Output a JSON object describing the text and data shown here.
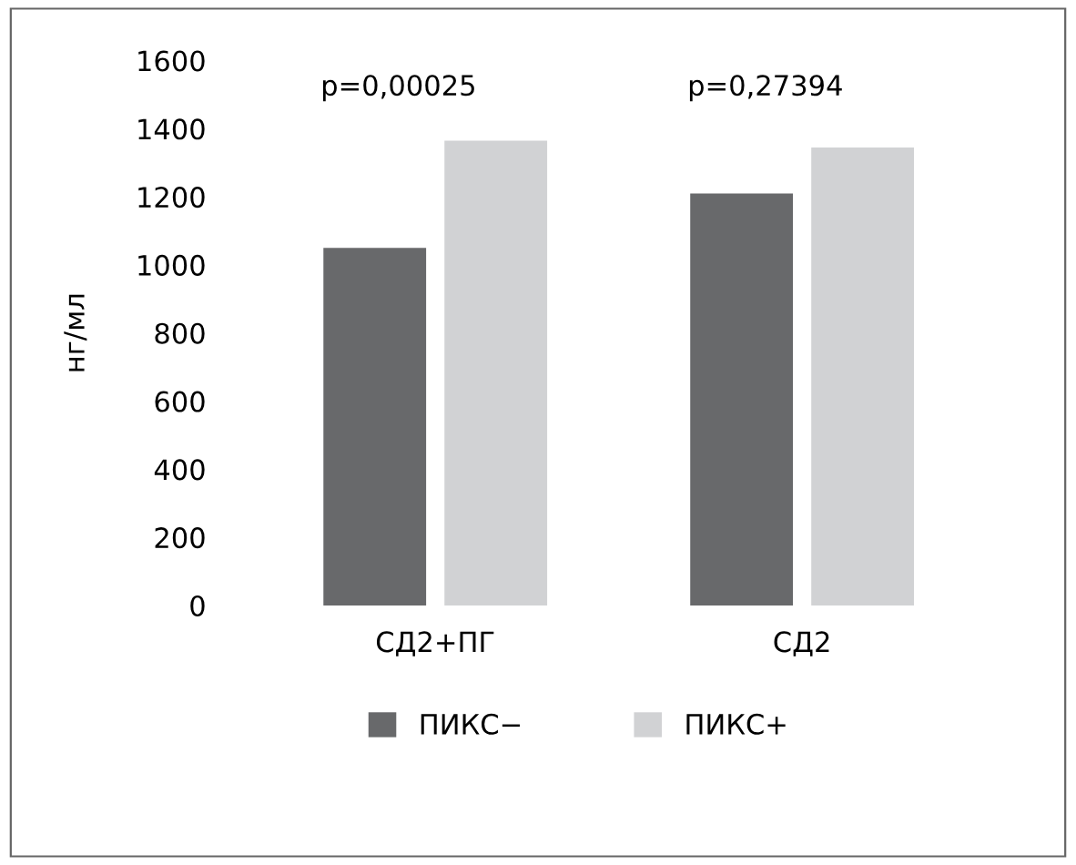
{
  "chart_data": {
    "type": "bar",
    "ylabel": "нг/мл",
    "categories": [
      "СД2+ПГ",
      "СД2"
    ],
    "series": [
      {
        "name": "ПИКС−",
        "color": "#68696b",
        "values": [
          1050,
          1210
        ]
      },
      {
        "name": "ПИКС+",
        "color": "#d1d2d4",
        "values": [
          1365,
          1345
        ]
      }
    ],
    "ylim": [
      0,
      1600
    ],
    "yticks": [
      0,
      200,
      400,
      600,
      800,
      1000,
      1200,
      1400,
      1600
    ],
    "annotations": [
      "p=0,00025",
      "p=0,27394"
    ],
    "legend": "bottom",
    "grid": false
  }
}
